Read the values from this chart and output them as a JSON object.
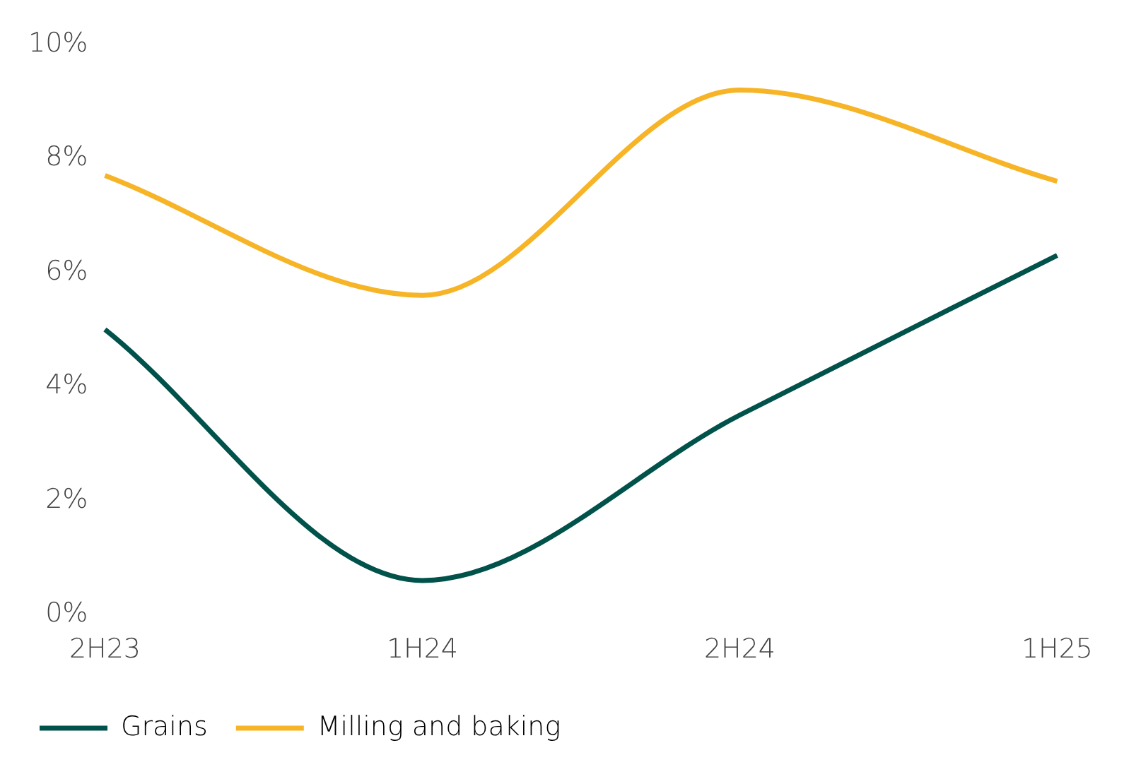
{
  "chart_data": {
    "type": "line",
    "categories": [
      "2H23",
      "1H24",
      "2H24",
      "1H25"
    ],
    "series": [
      {
        "name": "Grains",
        "color": "#00524a",
        "values": [
          5.0,
          0.6,
          3.5,
          6.3
        ]
      },
      {
        "name": "Milling and baking",
        "color": "#f6b426",
        "values": [
          7.7,
          5.6,
          9.2,
          7.6
        ]
      }
    ],
    "ylim": [
      0,
      10
    ],
    "yticks": [
      {
        "value": 0,
        "label": "0%"
      },
      {
        "value": 2,
        "label": "2%"
      },
      {
        "value": 4,
        "label": "4%"
      },
      {
        "value": 6,
        "label": "6%"
      },
      {
        "value": 8,
        "label": "8%"
      },
      {
        "value": 10,
        "label": "10%"
      }
    ],
    "grid": false,
    "legend": "bottom left",
    "marker": "none",
    "line_style": "solid"
  }
}
